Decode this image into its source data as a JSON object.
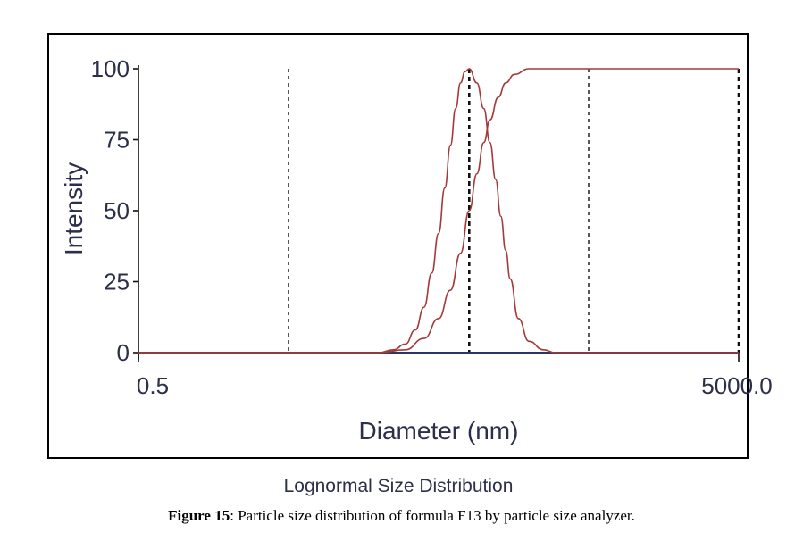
{
  "chart_data": {
    "type": "line",
    "xlabel": "Diameter (nm)",
    "ylabel": "Intensity",
    "subtitle": "Lognormal Size Distribution",
    "x_scale": "log",
    "xlim": [
      0.5,
      5000.0
    ],
    "ylim": [
      0,
      100
    ],
    "x_tick_labels": [
      "0.5",
      "5000.0"
    ],
    "y_tick_labels": [
      "0",
      "25",
      "50",
      "75",
      "100"
    ],
    "y_ticks": [
      0,
      25,
      50,
      75,
      100
    ],
    "series": [
      {
        "curve": "distribution",
        "color": "#a23a3a",
        "x": [
          0.5,
          20,
          25,
          30,
          35,
          40,
          45,
          50,
          55,
          60,
          65,
          70,
          75,
          80,
          90,
          100,
          110,
          120,
          130,
          140,
          150,
          170,
          200,
          250,
          300,
          5000
        ],
        "y": [
          0,
          0,
          1,
          3,
          8,
          16,
          28,
          42,
          58,
          73,
          86,
          95,
          99,
          100,
          95,
          86,
          74,
          61,
          48,
          36,
          26,
          12,
          4,
          1,
          0,
          0
        ]
      },
      {
        "curve": "cumulative",
        "color": "#a23a3a",
        "x": [
          0.5,
          20,
          30,
          40,
          50,
          60,
          70,
          80,
          90,
          100,
          110,
          125,
          140,
          160,
          200,
          250,
          320,
          5000
        ],
        "y": [
          0,
          0,
          1,
          5,
          12,
          22,
          35,
          50,
          63,
          74,
          82,
          90,
          95,
          98,
          100,
          100,
          100,
          100
        ]
      }
    ],
    "vertical_markers": [
      {
        "x": 5,
        "style": "dashed"
      },
      {
        "x": 80,
        "style": "dashed-bold"
      },
      {
        "x": 500,
        "style": "dashed"
      },
      {
        "x": 5000,
        "style": "dashed-bold"
      }
    ],
    "grid": false,
    "legend": "none"
  },
  "caption": {
    "label": "Figure 15",
    "text": ": Particle size distribution of formula F13 by particle size analyzer."
  }
}
